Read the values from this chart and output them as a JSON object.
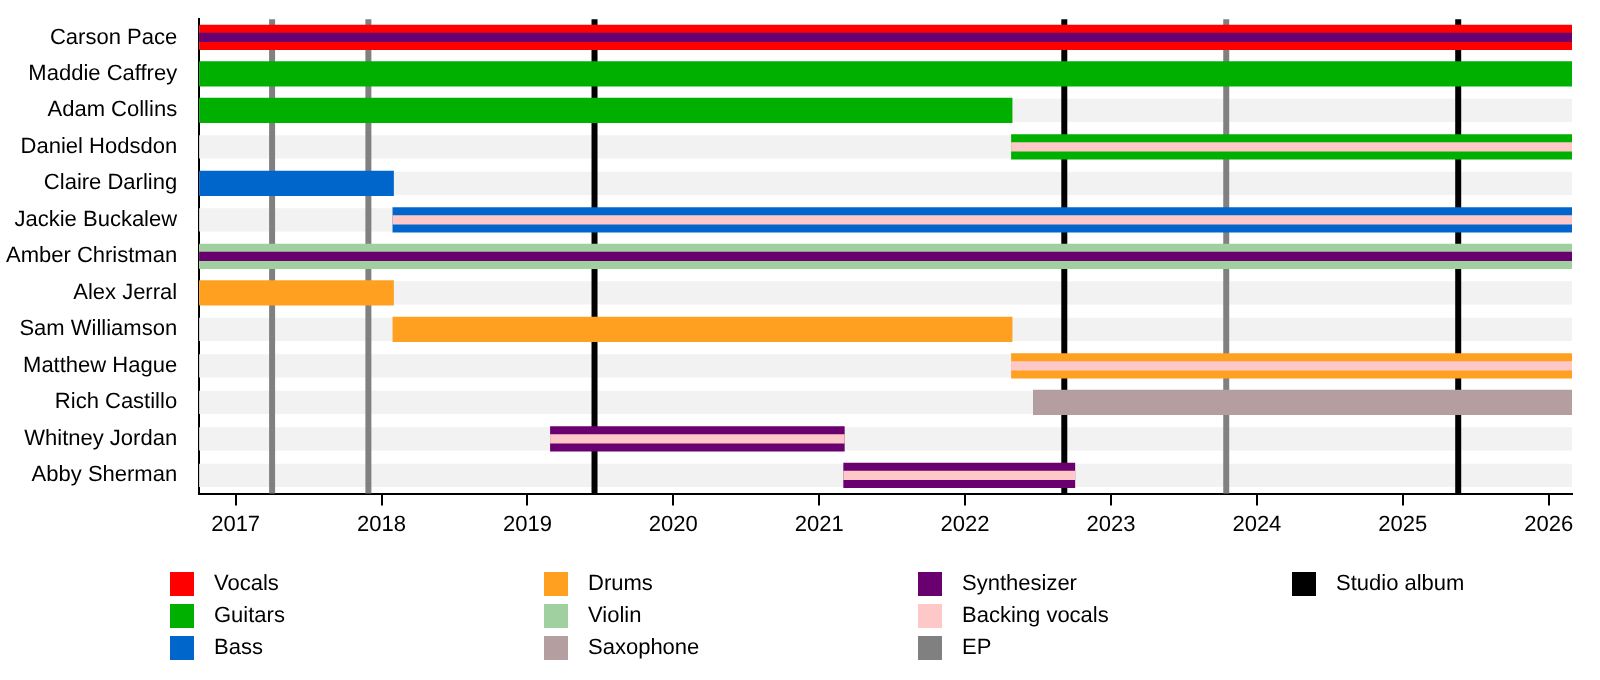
{
  "chart_data": {
    "type": "bar",
    "orientation": "horizontal",
    "categories": [
      "Carson Pace",
      "Maddie Caffrey",
      "Adam Collins",
      "Daniel Hodsdon",
      "Claire Darling",
      "Jackie Buckalew",
      "Amber Christman",
      "Alex Jerral",
      "Sam Williamson",
      "Matthew Hague",
      "Rich Castillo",
      "Whitney Jordan",
      "Abby Sherman"
    ],
    "xlim": [
      2016.75,
      2026.16
    ],
    "xticks": [
      2017,
      2018,
      2019,
      2020,
      2021,
      2022,
      2023,
      2024,
      2025,
      2026
    ],
    "legend": "bottom",
    "series": [
      {
        "name": "Vocals",
        "color": "#ff0000",
        "base": [
          2016.75,
          null,
          null,
          null,
          null,
          null,
          null,
          null,
          null,
          null,
          null,
          null,
          null
        ],
        "values": [
          9.41,
          null,
          null,
          null,
          null,
          null,
          null,
          null,
          null,
          null,
          null,
          null,
          null
        ]
      },
      {
        "name": "Guitars",
        "color": "#00b000",
        "base": [
          null,
          2016.75,
          2016.75,
          2022.32,
          null,
          null,
          null,
          null,
          null,
          null,
          null,
          null,
          null
        ],
        "values": [
          null,
          9.41,
          5.57,
          3.84,
          null,
          null,
          null,
          null,
          null,
          null,
          null,
          null,
          null
        ]
      },
      {
        "name": "Bass",
        "color": "#0066cc",
        "base": [
          null,
          null,
          null,
          null,
          2016.75,
          2018.08,
          null,
          null,
          null,
          null,
          null,
          null,
          null
        ],
        "values": [
          null,
          null,
          null,
          null,
          1.33,
          8.08,
          null,
          null,
          null,
          null,
          null,
          null,
          null
        ]
      },
      {
        "name": "Drums",
        "color": "#ffa020",
        "base": [
          null,
          null,
          null,
          null,
          null,
          null,
          null,
          2016.75,
          2018.08,
          2022.32,
          null,
          null,
          null
        ],
        "values": [
          null,
          null,
          null,
          null,
          null,
          null,
          null,
          1.33,
          4.24,
          3.84,
          null,
          null,
          null
        ]
      },
      {
        "name": "Violin",
        "color": "#a0d0a0",
        "base": [
          null,
          null,
          null,
          null,
          null,
          null,
          2016.75,
          null,
          null,
          null,
          null,
          null,
          null
        ],
        "values": [
          null,
          null,
          null,
          null,
          null,
          null,
          9.41,
          null,
          null,
          null,
          null,
          null,
          null
        ]
      },
      {
        "name": "Saxophone",
        "color": "#b49ea0",
        "base": [
          null,
          null,
          null,
          null,
          null,
          null,
          null,
          null,
          null,
          null,
          2022.47,
          null,
          null
        ],
        "values": [
          null,
          null,
          null,
          null,
          null,
          null,
          null,
          null,
          null,
          null,
          3.69,
          null,
          null
        ]
      },
      {
        "name": "Synthesizer",
        "color": "#6a0070",
        "base": [
          2016.75,
          null,
          null,
          null,
          null,
          null,
          2016.75,
          null,
          null,
          null,
          null,
          2019.16,
          2021.17
        ],
        "values": [
          9.41,
          null,
          null,
          null,
          null,
          null,
          9.41,
          null,
          null,
          null,
          null,
          2.01,
          1.58
        ]
      },
      {
        "name": "Backing vocals",
        "color": "#ffc8c8",
        "base": [
          null,
          null,
          null,
          2022.32,
          null,
          2018.08,
          null,
          null,
          null,
          2022.32,
          null,
          2019.16,
          2021.17
        ],
        "values": [
          null,
          null,
          null,
          3.84,
          null,
          8.08,
          null,
          null,
          null,
          3.84,
          null,
          2.01,
          1.58
        ]
      }
    ],
    "ref_lines": [
      {
        "axis": "x",
        "value": 2017.25,
        "label": "EP",
        "color": "#808080"
      },
      {
        "axis": "x",
        "value": 2017.91,
        "color": "#808080"
      },
      {
        "axis": "x",
        "value": 2019.46,
        "label": "Studio album",
        "color": "#000000"
      },
      {
        "axis": "x",
        "value": 2022.68,
        "color": "#000000"
      },
      {
        "axis": "x",
        "value": 2023.79,
        "color": "#808080"
      },
      {
        "axis": "x",
        "value": 2025.38,
        "color": "#000000"
      }
    ]
  }
}
